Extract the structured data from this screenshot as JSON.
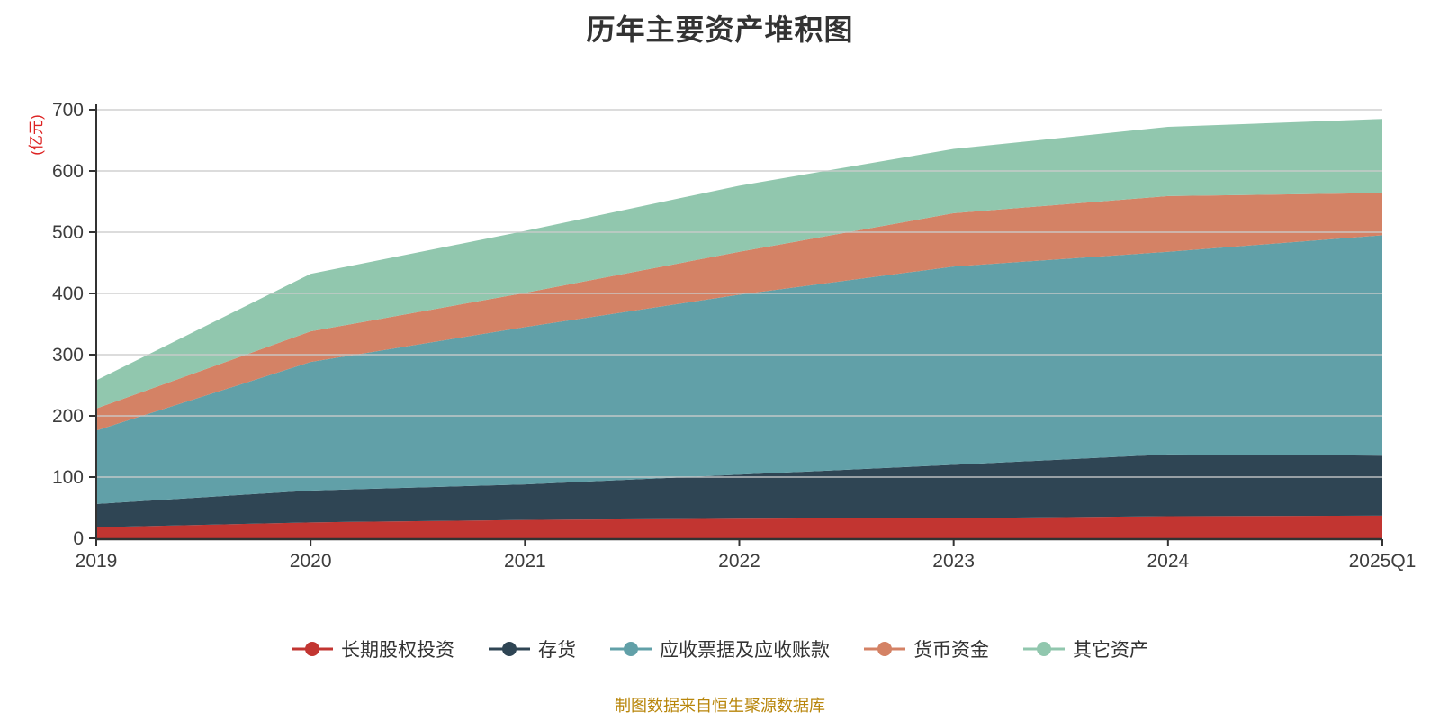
{
  "title": "历年主要资产堆积图",
  "footer_note": "制图数据来自恒生聚源数据库",
  "y_axis": {
    "unit_label": "(亿元)",
    "min": 0,
    "max": 700,
    "step": 100
  },
  "colors": {
    "background": "#ffffff",
    "title_text": "#333333",
    "axis_line": "#333333",
    "tick_label": "#3d3d3d",
    "gridline": "#cccccc",
    "y_unit_label": "#dd2222",
    "footer_text": "#b8860b",
    "legend_text": "#333333"
  },
  "chart_data": {
    "type": "area",
    "stacked": true,
    "title": "历年主要资产堆积图",
    "ylabel": "(亿元)",
    "xlabel": "",
    "categories": [
      "2019",
      "2020",
      "2021",
      "2022",
      "2023",
      "2024",
      "2025Q1"
    ],
    "series": [
      {
        "name": "长期股权投资",
        "color": "#c23531",
        "values": [
          18,
          26,
          30,
          32,
          33,
          36,
          37
        ]
      },
      {
        "name": "存货",
        "color": "#2f4554",
        "values": [
          38,
          52,
          58,
          72,
          87,
          101,
          98
        ]
      },
      {
        "name": "应收票据及应收账款",
        "color": "#61a0a8",
        "values": [
          120,
          210,
          257,
          294,
          324,
          331,
          360
        ]
      },
      {
        "name": "货币资金",
        "color": "#d48265",
        "values": [
          36,
          50,
          56,
          70,
          87,
          91,
          69
        ]
      },
      {
        "name": "其它资产",
        "color": "#91c7ae",
        "values": [
          46,
          94,
          101,
          108,
          105,
          113,
          121
        ]
      }
    ],
    "stack_totals": [
      258,
      432,
      502,
      576,
      636,
      672,
      685
    ],
    "ylim": [
      0,
      700
    ],
    "y_tick_step": 100,
    "grid": true,
    "legend_position": "bottom"
  }
}
